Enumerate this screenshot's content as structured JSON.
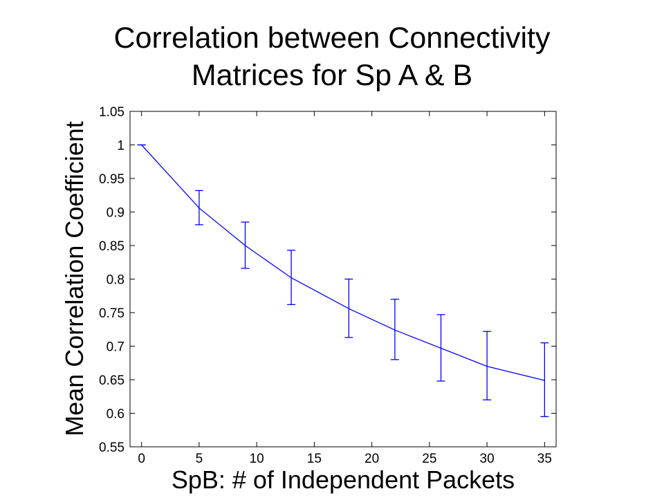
{
  "chart_data": {
    "type": "line",
    "title_lines": [
      "Correlation between Connectivity",
      "Matrices for Sp A & B"
    ],
    "xlabel": "SpB: # of Independent Packets",
    "ylabel": "Mean Correlation Coefficient",
    "xlim": [
      -1,
      36
    ],
    "ylim": [
      0.55,
      1.05
    ],
    "xticks": [
      0,
      5,
      10,
      15,
      20,
      25,
      30,
      35
    ],
    "xtick_labels": [
      "0",
      "5",
      "10",
      "15",
      "20",
      "25",
      "30",
      "35"
    ],
    "yticks": [
      0.55,
      0.6,
      0.65,
      0.7,
      0.75,
      0.8,
      0.85,
      0.9,
      0.95,
      1,
      1.05
    ],
    "ytick_labels": [
      "0.55",
      "0.6",
      "0.65",
      "0.7",
      "0.75",
      "0.8",
      "0.85",
      "0.9",
      "0.95",
      "1",
      "1.05"
    ],
    "grid": false,
    "line_color": "#0000ff",
    "series": [
      {
        "x": [
          0,
          5,
          9,
          13,
          18,
          22,
          26,
          30,
          35
        ],
        "y": [
          1.0,
          0.906,
          0.85,
          0.802,
          0.756,
          0.724,
          0.697,
          0.67,
          0.649
        ],
        "yerr_low": [
          1.0,
          0.881,
          0.816,
          0.762,
          0.713,
          0.68,
          0.648,
          0.62,
          0.595
        ],
        "yerr_high": [
          1.0,
          0.932,
          0.885,
          0.843,
          0.8,
          0.77,
          0.747,
          0.722,
          0.705
        ]
      }
    ]
  }
}
